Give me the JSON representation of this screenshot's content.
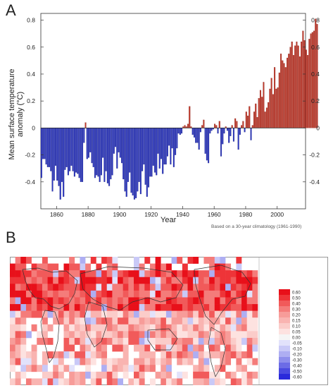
{
  "panel_a": {
    "letter": "A"
  },
  "panel_b": {
    "letter": "B"
  },
  "colors": {
    "positive": "#c0392b",
    "negative": "#2a35c0",
    "axis": "#333333"
  },
  "chart_data": [
    {
      "type": "bar",
      "title": "",
      "xlabel": "Year",
      "ylabel": "Mean surface temperature anomaly (°C)",
      "note": "Based on a 30-year climatology (1961-1990)",
      "xlim": [
        1850,
        2018
      ],
      "ylim": [
        -0.6,
        0.85
      ],
      "xticks": [
        1860,
        1880,
        1900,
        1920,
        1940,
        1960,
        1980,
        2000
      ],
      "yticks": [
        -0.4,
        -0.2,
        0,
        0.2,
        0.4,
        0.6,
        0.8
      ],
      "ytick_labels": [
        "-0.4",
        "-0.2",
        "0",
        "0.2",
        "0.4",
        "0.6",
        "0.8"
      ],
      "start_year": 1850,
      "values": [
        -0.37,
        -0.23,
        -0.23,
        -0.27,
        -0.29,
        -0.29,
        -0.32,
        -0.47,
        -0.39,
        -0.28,
        -0.39,
        -0.43,
        -0.53,
        -0.4,
        -0.51,
        -0.31,
        -0.29,
        -0.35,
        -0.32,
        -0.28,
        -0.32,
        -0.36,
        -0.33,
        -0.34,
        -0.37,
        -0.4,
        -0.4,
        -0.11,
        0.04,
        -0.23,
        -0.22,
        -0.18,
        -0.26,
        -0.29,
        -0.37,
        -0.35,
        -0.36,
        -0.4,
        -0.35,
        -0.22,
        -0.4,
        -0.32,
        -0.41,
        -0.43,
        -0.38,
        -0.35,
        -0.19,
        -0.14,
        -0.3,
        -0.18,
        -0.22,
        -0.26,
        -0.38,
        -0.47,
        -0.51,
        -0.4,
        -0.33,
        -0.48,
        -0.5,
        -0.53,
        -0.52,
        -0.47,
        -0.4,
        -0.49,
        -0.32,
        -0.27,
        -0.42,
        -0.51,
        -0.44,
        -0.36,
        -0.36,
        -0.28,
        -0.33,
        -0.35,
        -0.19,
        -0.3,
        -0.23,
        -0.34,
        -0.27,
        -0.27,
        -0.21,
        -0.13,
        -0.27,
        -0.15,
        -0.29,
        -0.2,
        -0.15,
        -0.04,
        -0.05,
        -0.04,
        0.01,
        0.02,
        0.01,
        0.03,
        0.16,
        0.01,
        -0.05,
        -0.07,
        -0.11,
        -0.11,
        -0.16,
        -0.03,
        0.02,
        0.06,
        -0.19,
        -0.24,
        -0.26,
        -0.04,
        -0.02,
        -0.01,
        0.03,
        0.02,
        -0.04,
        0.05,
        -0.21,
        -0.12,
        -0.04,
        0.01,
        -0.02,
        -0.11,
        -0.06,
        0.02,
        -0.1,
        0.07,
        0.05,
        -0.16,
        -0.05,
        0.02,
        0.05,
        -0.03,
        0.12,
        0.09,
        0.16,
        -0.09,
        0.02,
        0.12,
        0.18,
        0.08,
        0.22,
        0.28,
        0.23,
        0.34,
        0.12,
        0.15,
        0.19,
        0.29,
        0.37,
        0.25,
        0.45,
        0.29,
        0.3,
        0.41,
        0.55,
        0.5,
        0.48,
        0.45,
        0.52,
        0.55,
        0.6,
        0.64,
        0.54,
        0.61,
        0.64,
        0.61,
        0.53,
        0.64,
        0.72,
        0.65,
        0.58,
        0.54,
        0.66,
        0.7,
        0.71,
        0.72,
        0.81,
        0.77
      ]
    },
    {
      "type": "heatmap",
      "title": "",
      "legend_values": [
        "0.60",
        "0.50",
        "0.40",
        "0.30",
        "0.20",
        "0.15",
        "0.10",
        "0.05",
        "0.00",
        "-0.05",
        "-0.10",
        "-0.20",
        "-0.30",
        "-0.40",
        "-0.50",
        "-0.60"
      ],
      "legend_colors": [
        "#e8101a",
        "#ee3438",
        "#f15a5a",
        "#f47c7a",
        "#f79c99",
        "#f9b4b1",
        "#fbccc9",
        "#fde2e0",
        "#f5f5f5",
        "#e2e2fb",
        "#c9c9f7",
        "#aeaef2",
        "#8e8eec",
        "#6c6ce6",
        "#4a4ae0",
        "#2a2adb"
      ],
      "grid": {
        "columns": 46,
        "rows": 19
      }
    }
  ]
}
